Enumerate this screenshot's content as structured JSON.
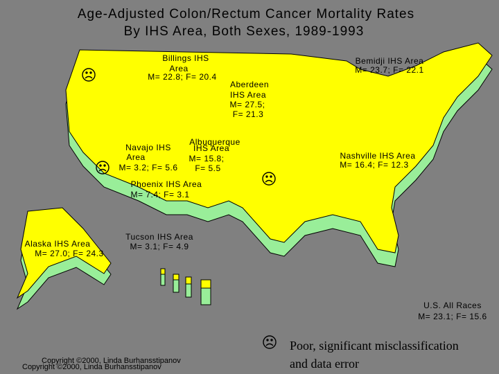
{
  "title": [
    "Age-Adjusted Colon/Rectum Cancer Mortality Rates",
    "By IHS Area, Both Sexes, 1989-1993"
  ],
  "regions": [
    {
      "lines": [
        "Billings IHS",
        "Area",
        "M= 22.8; F= 20.4"
      ]
    },
    {
      "lines": [
        "Aberdeen",
        "IHS Area",
        "M= 27.5;",
        "F= 21.3"
      ]
    },
    {
      "lines": [
        "Bemidji IHS Area",
        "M= 23.7; F= 22.1"
      ]
    },
    {
      "lines": [
        "Albuquerque",
        "IHS Area",
        "M= 15.8;",
        "F= 5.5"
      ]
    },
    {
      "lines": [
        "Navajo IHS",
        "Area",
        "M= 3.2; F= 5.6"
      ]
    },
    {
      "lines": [
        "Phoenix IHS Area",
        "M= 7.4; F= 3.1"
      ]
    },
    {
      "lines": [
        "Nashville IHS Area",
        "M= 16.4; F= 12.3"
      ]
    },
    {
      "lines": [
        "Alaska IHS Area",
        "M= 27.0; F= 24.3"
      ]
    },
    {
      "lines": [
        "Tucson IHS Area",
        "M= 3.1; F= 4.9"
      ]
    }
  ],
  "us_all_races": [
    "U.S. All Races",
    "M= 23.1; F= 15.6"
  ],
  "legend": [
    "Poor, significant misclassification",
    "and data error"
  ],
  "copyright": "Copyright ©2000, Linda Burhansstipanov"
}
